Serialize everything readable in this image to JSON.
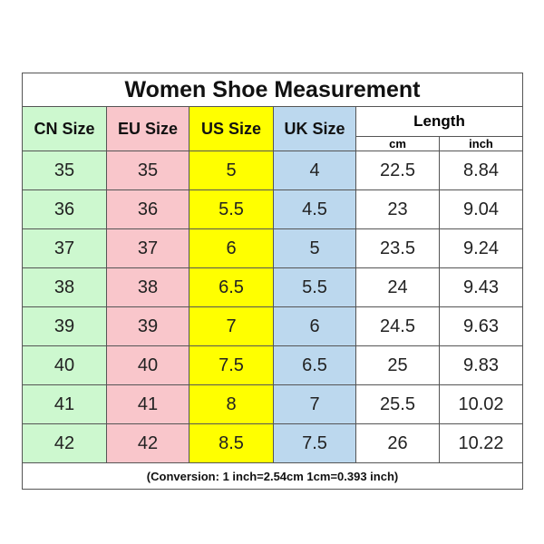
{
  "title": "Women Shoe Measurement",
  "headers": {
    "cn": "CN Size",
    "eu": "EU Size",
    "us": "US Size",
    "uk": "UK Size",
    "length": "Length",
    "cm": "cm",
    "inch": "inch"
  },
  "rows": [
    {
      "cn": "35",
      "eu": "35",
      "us": "5",
      "uk": "4",
      "cm": "22.5",
      "inch": "8.84"
    },
    {
      "cn": "36",
      "eu": "36",
      "us": "5.5",
      "uk": "4.5",
      "cm": "23",
      "inch": "9.04"
    },
    {
      "cn": "37",
      "eu": "37",
      "us": "6",
      "uk": "5",
      "cm": "23.5",
      "inch": "9.24"
    },
    {
      "cn": "38",
      "eu": "38",
      "us": "6.5",
      "uk": "5.5",
      "cm": "24",
      "inch": "9.43"
    },
    {
      "cn": "39",
      "eu": "39",
      "us": "7",
      "uk": "6",
      "cm": "24.5",
      "inch": "9.63"
    },
    {
      "cn": "40",
      "eu": "40",
      "us": "7.5",
      "uk": "6.5",
      "cm": "25",
      "inch": "9.83"
    },
    {
      "cn": "41",
      "eu": "41",
      "us": "8",
      "uk": "7",
      "cm": "25.5",
      "inch": "10.02"
    },
    {
      "cn": "42",
      "eu": "42",
      "us": "8.5",
      "uk": "7.5",
      "cm": "26",
      "inch": "10.22"
    }
  ],
  "note": "(Conversion: 1 inch=2.54cm  1cm=0.393 inch)",
  "colors": {
    "cn": "#cdf8cf",
    "eu": "#f9c6cb",
    "us": "#ffff00",
    "uk": "#bcd8ee",
    "length": "#ffffff"
  }
}
